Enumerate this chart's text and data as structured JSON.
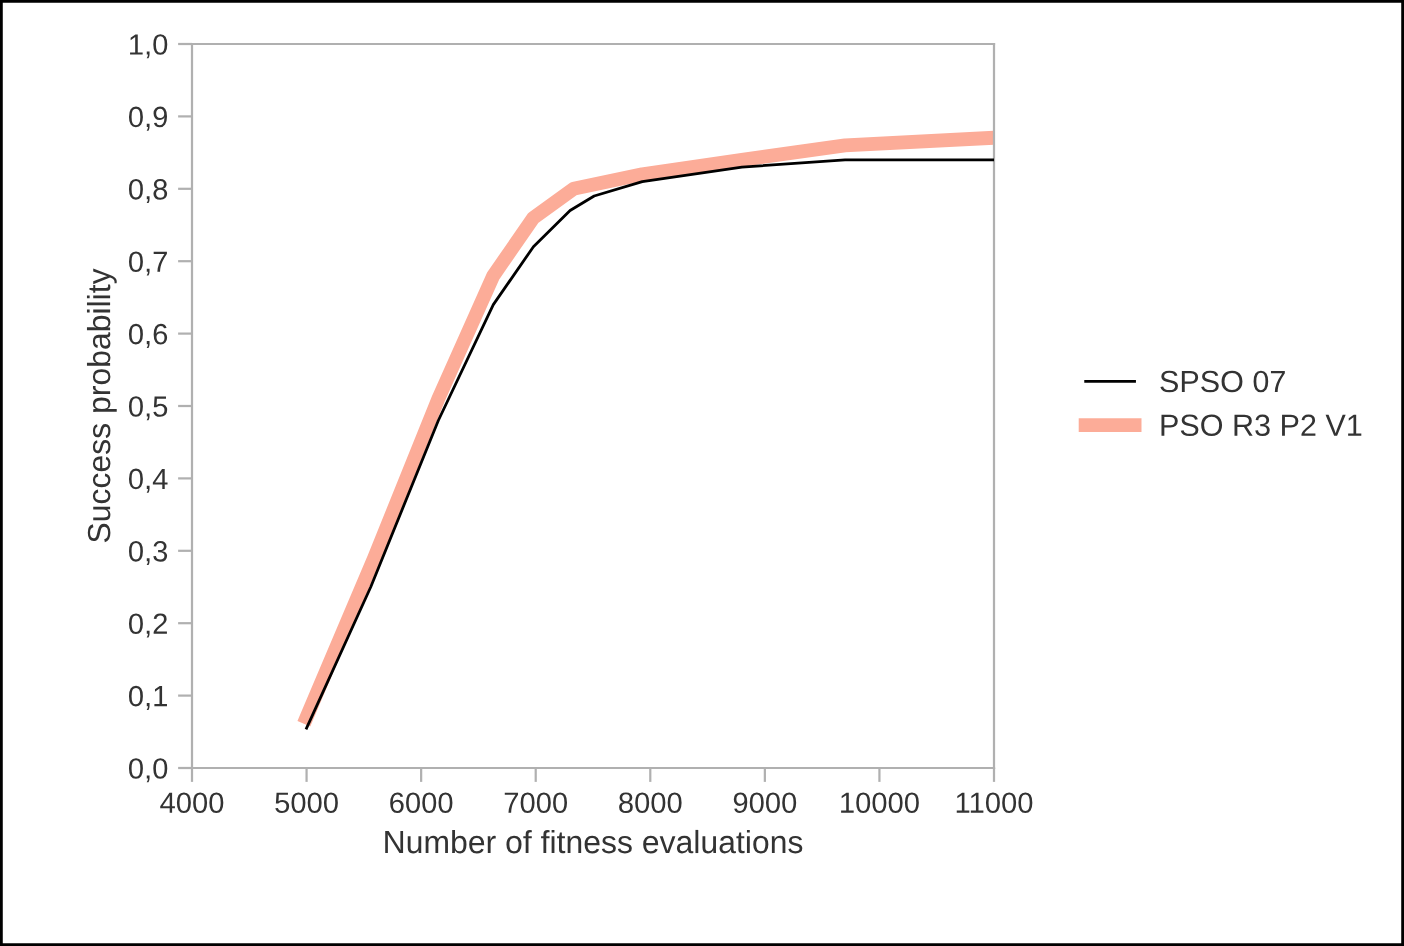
{
  "chart_data": {
    "type": "line",
    "xlabel": "Number of fitness evaluations",
    "ylabel": "Success probability",
    "xlim": [
      4000,
      11000
    ],
    "xticks": [
      4000,
      5000,
      6000,
      7000,
      8000,
      9000,
      10000,
      11000
    ],
    "ylim": [
      0,
      1
    ],
    "yticks": [
      {
        "value": 0,
        "label": "0,0"
      },
      {
        "value": 0.1,
        "label": "0,1"
      },
      {
        "value": 0.2,
        "label": "0,2"
      },
      {
        "value": 0.3,
        "label": "0,3"
      },
      {
        "value": 0.4,
        "label": "0,4"
      },
      {
        "value": 0.5,
        "label": "0,5"
      },
      {
        "value": 0.6,
        "label": "0,6"
      },
      {
        "value": 0.7,
        "label": "0,7"
      },
      {
        "value": 0.8,
        "label": "0,8"
      },
      {
        "value": 0.9,
        "label": "0,9"
      },
      {
        "value": 1,
        "label": "1,0"
      }
    ],
    "grid": false,
    "legend": "right",
    "marker": "none",
    "line_style": "solid",
    "series": [
      {
        "name": "SPSO 07",
        "color": "#000000",
        "x": [
          5000,
          5560,
          6150,
          6630,
          6980,
          7300,
          7510,
          7930,
          8800,
          9700,
          11000
        ],
        "values": [
          0.055,
          0.25,
          0.48,
          0.64,
          0.72,
          0.77,
          0.79,
          0.81,
          0.83,
          0.84,
          0.84
        ]
      },
      {
        "name": "PSO R3 P2 V1",
        "color": "#fcac98",
        "x": [
          5000,
          5590,
          6150,
          6630,
          6980,
          7330,
          7930,
          8800,
          9700,
          10940
        ],
        "values": [
          0.07,
          0.29,
          0.51,
          0.68,
          0.76,
          0.8,
          0.82,
          0.84,
          0.86,
          0.87
        ]
      }
    ]
  }
}
